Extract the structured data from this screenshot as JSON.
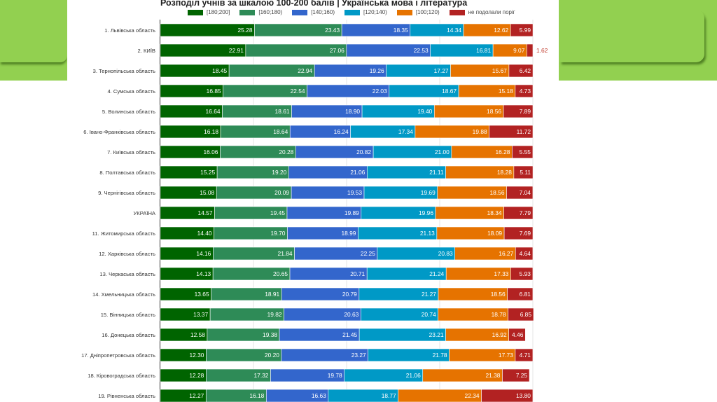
{
  "slide": {
    "background_accent": "#92d050"
  },
  "chart_data": {
    "type": "bar",
    "orientation": "horizontal",
    "stacked": true,
    "title": "Розподіл учнів за шкалою 100-200 балів | Українська мова і література",
    "xlabel": "",
    "ylabel": "",
    "xlim": [
      0,
      100
    ],
    "grid": true,
    "legend_position": "top",
    "categories": [
      "1. Львівська область",
      "2. КИЇВ",
      "3. Тернопільська область",
      "4. Сумська область",
      "5. Волинська область",
      "6. Івано-Франківська область",
      "7. Київська область",
      "8. Полтавська область",
      "9. Чернігівська область",
      "УКРАЇНА",
      "11. Житомирська область",
      "12. Харківська область",
      "13. Черкаська область",
      "14. Хмельницька область",
      "15. Вінницька область",
      "16. Донецька область",
      "17. Дніпропетровська область",
      "18. Кіровоградська область",
      "19. Рівненська область"
    ],
    "series": [
      {
        "name": "[180;200]",
        "color": "#006400",
        "values": [
          25.28,
          22.91,
          18.45,
          16.85,
          16.64,
          16.18,
          16.06,
          15.25,
          15.08,
          14.57,
          14.4,
          14.16,
          14.13,
          13.65,
          13.37,
          12.58,
          12.3,
          12.28,
          12.27
        ]
      },
      {
        "name": "[160;180)",
        "color": "#2e8b57",
        "values": [
          23.43,
          27.06,
          22.94,
          22.54,
          18.61,
          18.64,
          20.28,
          19.2,
          20.09,
          19.45,
          19.7,
          21.84,
          20.65,
          18.91,
          19.82,
          19.38,
          20.2,
          17.32,
          16.18
        ]
      },
      {
        "name": "[140;160)",
        "color": "#3366cc",
        "values": [
          18.35,
          22.53,
          19.26,
          22.03,
          18.9,
          16.24,
          20.82,
          21.06,
          19.53,
          19.89,
          18.99,
          22.25,
          20.71,
          20.79,
          20.63,
          21.45,
          23.27,
          19.78,
          16.63
        ]
      },
      {
        "name": "[120;140)",
        "color": "#0099c6",
        "values": [
          14.34,
          16.81,
          17.27,
          18.67,
          19.4,
          17.34,
          21.0,
          21.11,
          19.69,
          19.96,
          21.13,
          20.83,
          21.24,
          21.27,
          20.74,
          23.21,
          21.78,
          21.06,
          18.77
        ]
      },
      {
        "name": "[100;120)",
        "color": "#e67300",
        "values": [
          12.62,
          9.07,
          15.67,
          15.18,
          18.56,
          19.88,
          16.28,
          18.28,
          18.56,
          18.34,
          18.09,
          16.27,
          17.33,
          18.56,
          18.78,
          16.92,
          17.73,
          21.38,
          22.34
        ]
      },
      {
        "name": "не подолали поріг",
        "color": "#b22222",
        "values": [
          5.99,
          1.62,
          6.42,
          4.73,
          7.89,
          11.72,
          5.55,
          5.11,
          7.04,
          7.79,
          7.69,
          4.64,
          5.93,
          6.81,
          6.85,
          4.46,
          4.71,
          7.25,
          13.8
        ]
      }
    ],
    "label_format": "0.00"
  }
}
